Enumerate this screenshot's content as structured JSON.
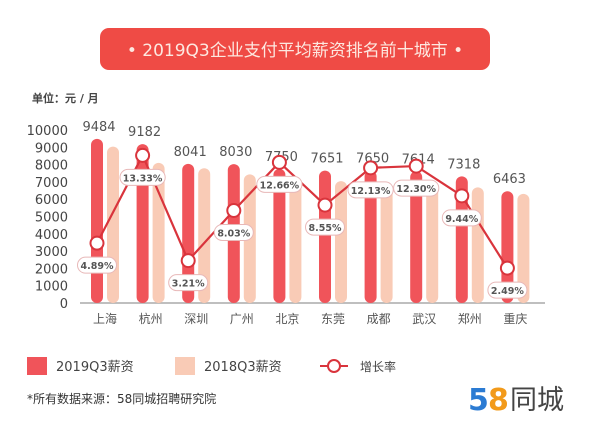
{
  "chart_data": {
    "type": "bar",
    "title": "• 2019Q3企业支付平均薪资排名前十城市 •",
    "unit_label": "单位：元 / 月",
    "categories": [
      "上海",
      "杭州",
      "深圳",
      "广州",
      "北京",
      "东莞",
      "成都",
      "武汉",
      "郑州",
      "重庆"
    ],
    "ylim": [
      0,
      10000
    ],
    "yticks": [
      0,
      1000,
      2000,
      3000,
      4000,
      5000,
      6000,
      7000,
      8000,
      9000,
      10000
    ],
    "grid": false,
    "series": [
      {
        "name": "2019Q3薪资",
        "type": "bar",
        "color": "#f0545a",
        "values": [
          9484,
          9182,
          8041,
          8030,
          7750,
          7651,
          7650,
          7614,
          7318,
          6463
        ],
        "labels": [
          "9484",
          "9182",
          "8041",
          "8030",
          "7750",
          "7651",
          "7650",
          "7614",
          "7318",
          "6463"
        ]
      },
      {
        "name": "2018Q3薪资",
        "type": "bar",
        "color": "#f9cbb6",
        "values": [
          9042,
          8102,
          7791,
          7433,
          6879,
          7048,
          6822,
          6780,
          6687,
          6306
        ]
      },
      {
        "name": "增长率",
        "type": "line",
        "color": "#d9343c",
        "values": [
          4.89,
          13.33,
          3.21,
          8.03,
          12.66,
          8.55,
          12.13,
          12.3,
          9.44,
          2.49
        ],
        "labels": [
          "4.89%",
          "13.33%",
          "3.21%",
          "8.03%",
          "12.66%",
          "8.55%",
          "12.13%",
          "12.30%",
          "9.44%",
          "2.49%"
        ]
      }
    ],
    "legend_position": "bottom-left",
    "title_color": "#ef4b45"
  },
  "footer": {
    "source": "*所有数据来源：58同城招聘研究院",
    "logo_text": "58同城"
  }
}
